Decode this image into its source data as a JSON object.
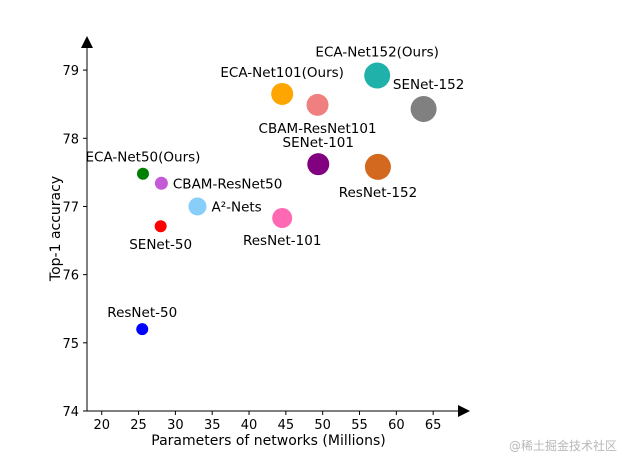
{
  "chart_data": {
    "type": "scatter",
    "title": "",
    "xlabel": "Parameters of networks (Millions)",
    "ylabel": "Top-1 accuracy",
    "xlim": [
      18,
      70
    ],
    "ylim": [
      74,
      79.5
    ],
    "xticks": [
      20,
      25,
      30,
      35,
      40,
      45,
      50,
      55,
      60,
      65
    ],
    "yticks": [
      74,
      75,
      76,
      77,
      78,
      79
    ],
    "grid": false,
    "points": [
      {
        "name": "ResNet-50",
        "x": 25.5,
        "y": 75.2,
        "size": 6,
        "color": "#0000ff",
        "label_pos": "above"
      },
      {
        "name": "SENet-50",
        "x": 28.0,
        "y": 76.71,
        "size": 6,
        "color": "#ff0000",
        "label_pos": "below"
      },
      {
        "name": "ECA-Net50(Ours)",
        "x": 25.6,
        "y": 77.48,
        "size": 6,
        "color": "#008000",
        "label_pos": "above"
      },
      {
        "name": "CBAM-ResNet50",
        "x": 28.1,
        "y": 77.34,
        "size": 6.5,
        "color": "#c45ad6",
        "label_pos": "right"
      },
      {
        "name": "A²-Nets",
        "x": 33.0,
        "y": 77.0,
        "size": 9,
        "color": "#87cefa",
        "label_pos": "right"
      },
      {
        "name": "ResNet-101",
        "x": 44.5,
        "y": 76.83,
        "size": 10,
        "color": "#ff69b4",
        "label_pos": "below"
      },
      {
        "name": "SENet-101",
        "x": 49.4,
        "y": 77.62,
        "size": 11,
        "color": "#800080",
        "label_pos": "above"
      },
      {
        "name": "ECA-Net101(Ours)",
        "x": 44.5,
        "y": 78.65,
        "size": 11,
        "color": "#ffa500",
        "label_pos": "above"
      },
      {
        "name": "CBAM-ResNet101",
        "x": 49.3,
        "y": 78.49,
        "size": 11,
        "color": "#f08080",
        "label_pos": "below"
      },
      {
        "name": "ResNet-152",
        "x": 57.5,
        "y": 77.58,
        "size": 13,
        "color": "#d2691e",
        "label_pos": "below"
      },
      {
        "name": "ECA-Net152(Ours)",
        "x": 57.4,
        "y": 78.92,
        "size": 13,
        "color": "#20b2aa",
        "label_pos": "above"
      },
      {
        "name": "SENet-152",
        "x": 63.7,
        "y": 78.43,
        "size": 13,
        "color": "#808080",
        "label_pos": "above-right"
      }
    ]
  },
  "watermark": "@稀土掘金技术社区"
}
